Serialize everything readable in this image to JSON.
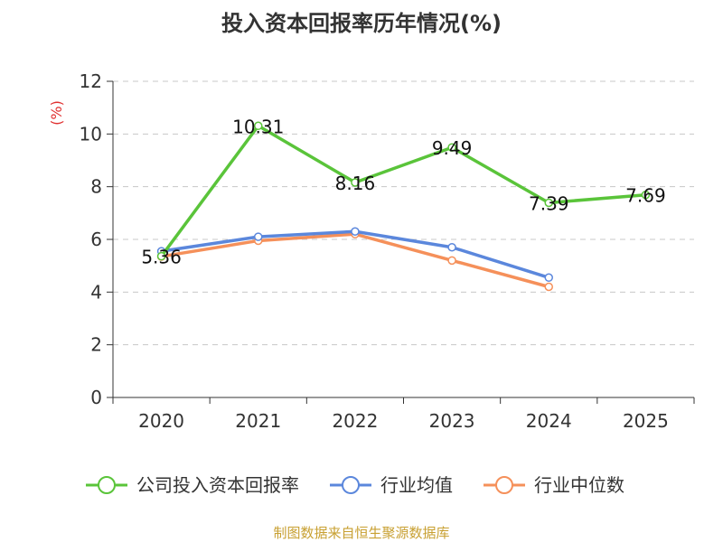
{
  "chart_data": {
    "type": "line",
    "title": "投入资本回报率历年情况(%)",
    "ylabel": "(%)",
    "categories": [
      "2020",
      "2021",
      "2022",
      "2023",
      "2024",
      "2025"
    ],
    "ylim": [
      0,
      12
    ],
    "yticks": [
      0,
      2,
      4,
      6,
      8,
      10,
      12
    ],
    "grid": true,
    "legend_position": "bottom",
    "series": [
      {
        "name": "公司投入资本回报率",
        "color": "#5ac43a",
        "values": [
          5.36,
          10.31,
          8.16,
          9.49,
          7.39,
          7.69
        ],
        "labels": [
          "5.36",
          "10.31",
          "8.16",
          "9.49",
          "7.39",
          "7.69"
        ]
      },
      {
        "name": "行业均值",
        "color": "#5b87dc",
        "values": [
          5.55,
          6.1,
          6.3,
          5.7,
          4.55,
          null
        ]
      },
      {
        "name": "行业中位数",
        "color": "#f5905a",
        "values": [
          5.35,
          5.95,
          6.2,
          5.2,
          4.2,
          null
        ]
      }
    ]
  },
  "source": "制图数据来自恒生聚源数据库"
}
